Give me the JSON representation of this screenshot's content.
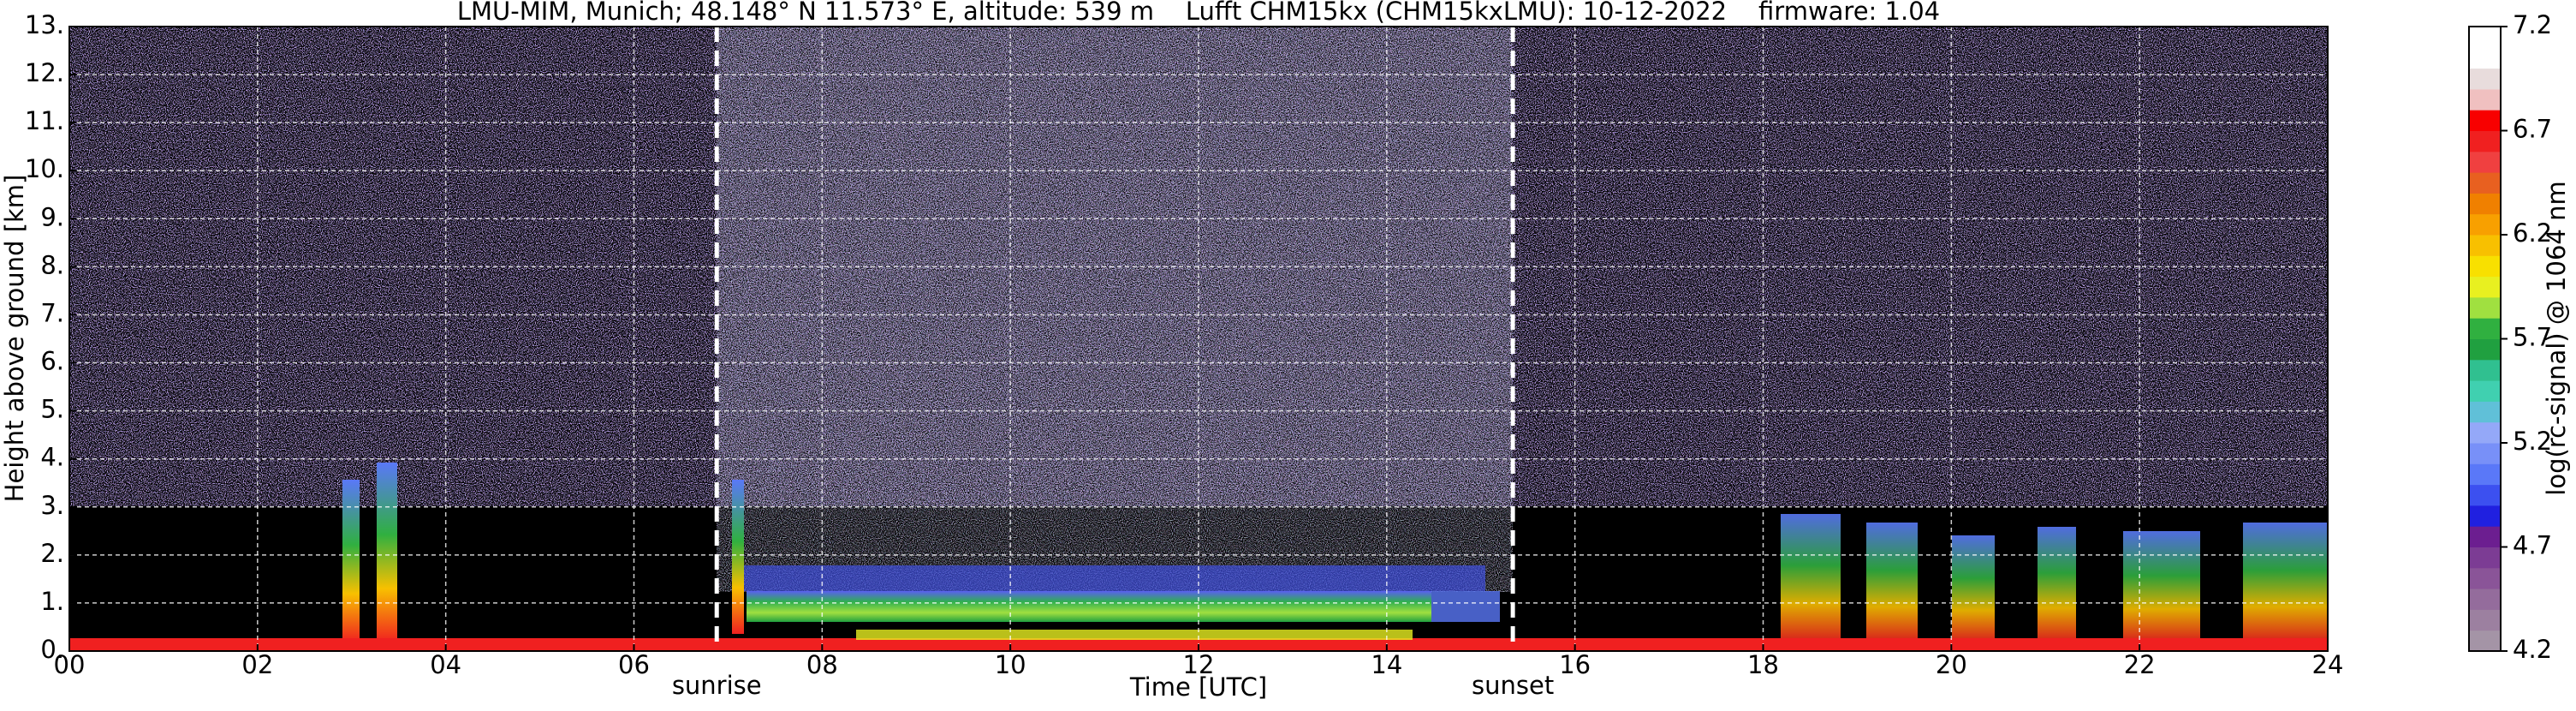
{
  "chart_data": {
    "type": "heatmap",
    "title": "LMU-MIM, Munich; 48.148° N 11.573° E, altitude: 539 m    Lufft CHM15kx (CHM15kxLMU): 10-12-2022    firmware: 1.04",
    "xlabel": "Time [UTC]",
    "ylabel": "Height above ground [km]",
    "xlim": [
      0,
      24
    ],
    "xticks": [
      {
        "value": 0,
        "label": "00"
      },
      {
        "value": 2,
        "label": "02"
      },
      {
        "value": 4,
        "label": "04"
      },
      {
        "value": 6,
        "label": "06"
      },
      {
        "value": 8,
        "label": "08"
      },
      10,
      12,
      14,
      16,
      18,
      20,
      22,
      24
    ],
    "ylim": [
      0,
      13
    ],
    "yticks": [
      {
        "value": 0,
        "label": "0."
      },
      {
        "value": 1,
        "label": "1."
      },
      {
        "value": 2,
        "label": "2."
      },
      {
        "value": 3,
        "label": "3."
      },
      {
        "value": 4,
        "label": "4."
      },
      {
        "value": 5,
        "label": "5."
      },
      {
        "value": 6,
        "label": "6."
      },
      {
        "value": 7,
        "label": "7."
      },
      {
        "value": 8,
        "label": "8."
      },
      {
        "value": 9,
        "label": "9."
      },
      {
        "value": 10,
        "label": "10."
      },
      {
        "value": 11,
        "label": "11."
      },
      {
        "value": 12,
        "label": "12."
      },
      {
        "value": 13,
        "label": "13."
      }
    ],
    "grid": true,
    "annotations": [
      {
        "text": "sunrise",
        "x": 6.88
      },
      {
        "text": "sunset",
        "x": 15.34
      }
    ],
    "colorbar": {
      "label": "log(rc-signal) @ 1064 nm",
      "clim": [
        4.2,
        7.2
      ],
      "ticks": [
        4.2,
        4.7,
        5.2,
        5.7,
        6.2,
        6.7,
        7.2
      ],
      "colors": [
        "#a494a6",
        "#9c80a0",
        "#946c9c",
        "#8a5498",
        "#7c3c94",
        "#6c1e90",
        "#2020e0",
        "#3c50f0",
        "#5a78f8",
        "#7890f8",
        "#94a8f8",
        "#60c0d8",
        "#40d0b0",
        "#30c090",
        "#20a040",
        "#30b040",
        "#a0e040",
        "#e8f020",
        "#f8e000",
        "#f8c000",
        "#f8a000",
        "#f08000",
        "#e86020",
        "#f04040",
        "#f02020",
        "#f80000",
        "#f0c0c0",
        "#e8dcdc",
        "#ffffff",
        "#ffffff"
      ]
    }
  }
}
